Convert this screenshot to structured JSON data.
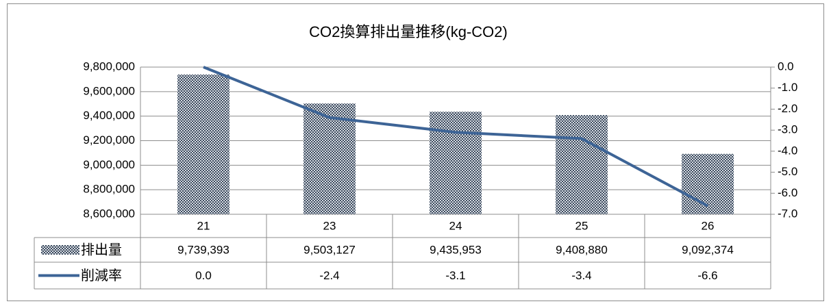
{
  "chart_data": {
    "type": "bar-line",
    "title": "CO2換算排出量推移(kg-CO2)",
    "categories": [
      "21",
      "23",
      "24",
      "25",
      "26"
    ],
    "series": [
      {
        "name": "排出量",
        "type": "bar",
        "color": "#3b4a5e",
        "values": [
          9739393,
          9503127,
          9435953,
          9408880,
          9092374
        ],
        "value_labels": [
          "9,739,393",
          "9,503,127",
          "9,435,953",
          "9,408,880",
          "9,092,374"
        ]
      },
      {
        "name": "削減率",
        "type": "line",
        "axis": "y2",
        "color": "#3d6496",
        "values": [
          0.0,
          -2.4,
          -3.1,
          -3.4,
          -6.6
        ],
        "value_labels": [
          "0.0",
          "-2.4",
          "-3.1",
          "-3.4",
          "-6.6"
        ]
      }
    ],
    "ylim": [
      8600000,
      9800000
    ],
    "yticks": [
      {
        "value": 8600000,
        "label": "8,600,000"
      },
      {
        "value": 8800000,
        "label": "8,800,000"
      },
      {
        "value": 9000000,
        "label": "9,000,000"
      },
      {
        "value": 9200000,
        "label": "9,200,000"
      },
      {
        "value": 9400000,
        "label": "9,400,000"
      },
      {
        "value": 9600000,
        "label": "9,600,000"
      },
      {
        "value": 9800000,
        "label": "9,800,000"
      }
    ],
    "y2lim": [
      -7,
      0
    ],
    "y2ticks": [
      {
        "value": 0,
        "label": "0.0"
      },
      {
        "value": -1,
        "label": "-1.0"
      },
      {
        "value": -2,
        "label": "-2.0"
      },
      {
        "value": -3,
        "label": "-3.0"
      },
      {
        "value": -4,
        "label": "-4.0"
      },
      {
        "value": -5,
        "label": "-5.0"
      },
      {
        "value": -6,
        "label": "-6.0"
      },
      {
        "value": -7,
        "label": "-7.0"
      }
    ],
    "grid": true,
    "data_table": true
  }
}
